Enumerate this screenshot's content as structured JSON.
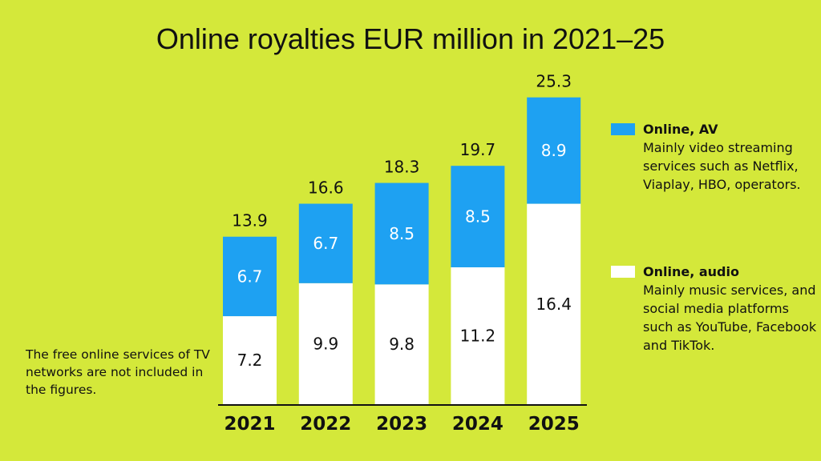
{
  "chart_data": {
    "type": "bar",
    "stacked": true,
    "title": "Online royalties EUR million in 2021–25",
    "categories": [
      "2021",
      "2022",
      "2023",
      "2024",
      "2025"
    ],
    "series": [
      {
        "name": "Online, audio",
        "values": [
          7.2,
          9.9,
          9.8,
          11.2,
          16.4
        ],
        "color": "#ffffff"
      },
      {
        "name": "Online, AV",
        "values": [
          6.7,
          6.7,
          8.5,
          8.5,
          8.9
        ],
        "color": "#1ea1f2"
      }
    ],
    "totals": [
      "13.9",
      "16.6",
      "18.3",
      "19.7",
      "25.3"
    ],
    "ylim": [
      0,
      25.3
    ]
  },
  "legend": [
    {
      "name": "Online, AV",
      "desc": "Mainly video streaming services such as Netflix, Viaplay, HBO, operators.",
      "color": "#1ea1f2"
    },
    {
      "name": "Online, audio",
      "desc": "Mainly music services, and social media platforms such as YouTube, Facebook and TikTok.",
      "color": "#ffffff"
    }
  ],
  "note": "The free online services of TV networks are not included in the figures.",
  "colors": {
    "background": "#d4e83a"
  }
}
